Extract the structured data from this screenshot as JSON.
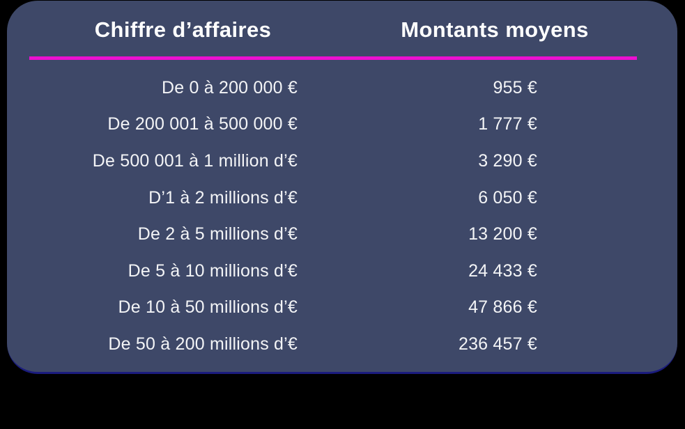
{
  "page": {
    "background_color": "#000000"
  },
  "card": {
    "background_color": "#3e4868",
    "bottom_edge_color": "#1b1c7e",
    "divider_color": "#eb10d0",
    "text_color": "#f3f4f6",
    "header_text_color": "#ffffff"
  },
  "table": {
    "headers": [
      {
        "label": "Chiffre d’affaires"
      },
      {
        "label": "Montants moyens"
      }
    ],
    "rows": [
      {
        "range": "De 0 à 200 000 €",
        "amount": "955 €"
      },
      {
        "range": "De 200 001 à 500 000 €",
        "amount": "1 777 €"
      },
      {
        "range": "De 500 001 à 1 million d’€",
        "amount": "3 290 €"
      },
      {
        "range": "D’1 à 2 millions d’€",
        "amount": "6 050 €"
      },
      {
        "range": "De 2 à 5 millions d’€",
        "amount": "13 200 €"
      },
      {
        "range": "De 5 à 10 millions d’€",
        "amount": "24 433 €"
      },
      {
        "range": "De 10 à 50 millions d’€",
        "amount": "47 866 €"
      },
      {
        "range": "De 50 à 200 millions d’€",
        "amount": "236 457 €"
      }
    ]
  },
  "chart_data": {
    "type": "table",
    "title": "",
    "columns": [
      "Chiffre d’affaires",
      "Montants moyens"
    ],
    "rows": [
      [
        "De 0 à 200 000 €",
        "955 €"
      ],
      [
        "De 200 001 à 500 000 €",
        "1 777 €"
      ],
      [
        "De 500 001 à 1 million d’€",
        "3 290 €"
      ],
      [
        "D’1 à 2 millions d’€",
        "6 050 €"
      ],
      [
        "De 2 à 5 millions d’€",
        "13 200 €"
      ],
      [
        "De 5 à 10 millions d’€",
        "24 433 €"
      ],
      [
        "De 10 à 50 millions d’€",
        "47 866 €"
      ],
      [
        "De 50 à 200 millions d’€",
        "236 457 €"
      ]
    ],
    "amounts_eur": [
      955,
      1777,
      3290,
      6050,
      13200,
      24433,
      47866,
      236457
    ]
  }
}
